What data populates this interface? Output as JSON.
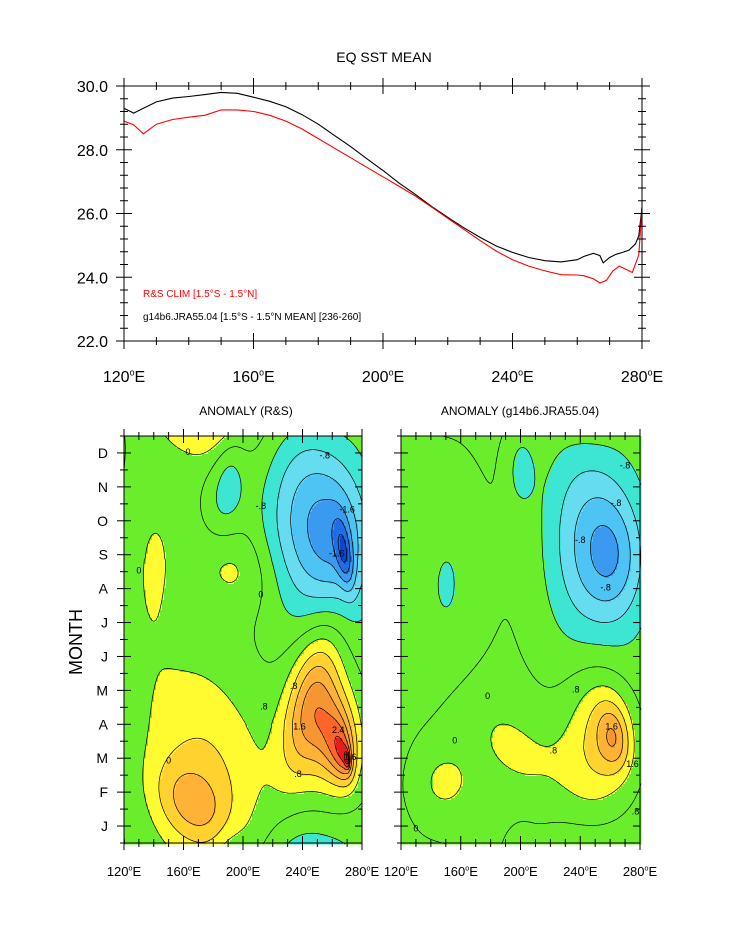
{
  "top_chart": {
    "chart_data": {
      "type": "line",
      "title": "EQ SST MEAN",
      "xlim": [
        120,
        280
      ],
      "ylim": [
        22,
        30
      ],
      "xticks": [
        {
          "v": 120,
          "label": "120°E"
        },
        {
          "v": 160,
          "label": "160°E"
        },
        {
          "v": 200,
          "label": "200°E"
        },
        {
          "v": 240,
          "label": "240°E"
        },
        {
          "v": 280,
          "label": "280°E"
        }
      ],
      "yticks": [
        {
          "v": 30,
          "label": "30.0"
        },
        {
          "v": 28,
          "label": "28.0"
        },
        {
          "v": 26,
          "label": "26.0"
        },
        {
          "v": 24,
          "label": "24.0"
        },
        {
          "v": 22,
          "label": "22.0"
        }
      ],
      "series": [
        {
          "name": "g14b6.JRA55.04 [1.5°S - 1.5°N MEAN] [236-260]",
          "color": "#000000",
          "x": [
            120,
            123,
            126,
            130,
            135,
            140,
            145,
            150,
            155,
            160,
            165,
            170,
            175,
            180,
            185,
            190,
            195,
            200,
            205,
            210,
            215,
            220,
            225,
            230,
            235,
            240,
            245,
            250,
            255,
            260,
            262,
            265,
            267,
            268,
            270,
            272,
            274,
            276,
            278,
            279,
            280
          ],
          "y": [
            29.3,
            29.15,
            29.3,
            29.5,
            29.62,
            29.67,
            29.73,
            29.8,
            29.77,
            29.65,
            29.52,
            29.35,
            29.1,
            28.8,
            28.45,
            28.1,
            27.72,
            27.35,
            26.95,
            26.6,
            26.22,
            25.88,
            25.55,
            25.25,
            24.98,
            24.78,
            24.62,
            24.52,
            24.48,
            24.55,
            24.65,
            24.75,
            24.68,
            24.45,
            24.62,
            24.72,
            24.78,
            24.85,
            25.05,
            25.3,
            26.2
          ]
        },
        {
          "name": "R&S CLIM [1.5°S - 1.5°N]",
          "color": "#ff0000",
          "x": [
            120,
            123,
            126,
            130,
            135,
            140,
            145,
            150,
            155,
            160,
            165,
            170,
            175,
            180,
            185,
            190,
            195,
            200,
            205,
            210,
            215,
            220,
            225,
            230,
            235,
            240,
            245,
            250,
            255,
            260,
            262,
            265,
            267,
            269,
            271,
            273,
            275,
            277,
            279,
            280
          ],
          "y": [
            28.9,
            28.78,
            28.5,
            28.8,
            28.95,
            29.02,
            29.08,
            29.25,
            29.25,
            29.2,
            29.08,
            28.9,
            28.65,
            28.35,
            28.05,
            27.75,
            27.45,
            27.15,
            26.85,
            26.55,
            26.2,
            25.85,
            25.5,
            25.15,
            24.82,
            24.55,
            24.35,
            24.2,
            24.08,
            24.07,
            24.05,
            23.95,
            23.82,
            23.9,
            24.2,
            24.35,
            24.25,
            24.15,
            24.7,
            26.2
          ]
        }
      ],
      "legend": [
        {
          "label": "R&S CLIM [1.5°S - 1.5°N]",
          "color": "#ff0000"
        },
        {
          "label": "g14b6.JRA55.04 [1.5°S - 1.5°N MEAN] [236-260]",
          "color": "#000000"
        }
      ],
      "grid": false
    }
  },
  "contour_charts": {
    "ylabel": "MONTH",
    "month_labels": [
      "J",
      "F",
      "M",
      "A",
      "M",
      "J",
      "J",
      "A",
      "S",
      "O",
      "N",
      "D"
    ],
    "month_values": [
      1,
      2,
      3,
      4,
      5,
      6,
      7,
      8,
      9,
      10,
      11,
      12
    ],
    "x_tick_labels": [
      {
        "v": 120,
        "label": "120°E"
      },
      {
        "v": 160,
        "label": "160°E"
      },
      {
        "v": 200,
        "label": "200°E"
      },
      {
        "v": 240,
        "label": "240°E"
      },
      {
        "v": 280,
        "label": "280°E"
      }
    ],
    "levels": [
      -2.4,
      -2.0,
      -1.6,
      -1.2,
      -0.8,
      -0.4,
      0.4,
      0.8,
      1.2,
      1.6,
      2.0,
      2.4,
      2.8
    ],
    "palette": [
      "#0a46d2",
      "#1e6ee6",
      "#3a9af0",
      "#4ec4f4",
      "#66dcf0",
      "#3ce6d2",
      "#6aee2c",
      "#fffb30",
      "#ffd230",
      "#ffb235",
      "#f59632",
      "#ff6428",
      "#e81c1c",
      "#cc0000"
    ],
    "charts": [
      {
        "type": "heatmap",
        "title": "ANOMALY (R&S)",
        "xlim": [
          120,
          280
        ],
        "ylim": [
          0.5,
          12.5
        ],
        "contour_labels": [
          {
            "text": "-.8",
            "x": 255,
            "y": 11.9
          },
          {
            "text": "-.8",
            "x": 212,
            "y": 10.4
          },
          {
            "text": "-1.6",
            "x": 270,
            "y": 10.3
          },
          {
            "text": "-1.6",
            "x": 263,
            "y": 9.0
          },
          {
            "text": ".8",
            "x": 234,
            "y": 5.1
          },
          {
            "text": ".8",
            "x": 214,
            "y": 4.5
          },
          {
            "text": "1.6",
            "x": 238,
            "y": 3.9
          },
          {
            "text": "2.4",
            "x": 264,
            "y": 3.8
          },
          {
            "text": "1.6",
            "x": 272,
            "y": 3.0
          },
          {
            "text": ".8",
            "x": 237,
            "y": 2.5
          },
          {
            "text": "0",
            "x": 163,
            "y": 12
          },
          {
            "text": "0",
            "x": 130,
            "y": 8.5
          },
          {
            "text": "0",
            "x": 212,
            "y": 7.8
          },
          {
            "text": "0",
            "x": 150,
            "y": 2.9
          }
        ],
        "blobs": [
          {
            "cx": 192,
            "cy": 11.5,
            "rx": 11,
            "ry": 1.3,
            "a": 0.2
          },
          {
            "cx": 185,
            "cy": 10.5,
            "rx": 14,
            "ry": 1.3,
            "a": 0.2
          },
          {
            "cx": 243,
            "cy": 10.0,
            "rx": 30,
            "ry": 3.1,
            "a": -0.33
          },
          {
            "cx": 267,
            "cy": 9.4,
            "rx": 16,
            "ry": 2.7,
            "a": -1.75
          },
          {
            "cx": 268,
            "cy": 9.0,
            "rx": 5,
            "ry": 1.1,
            "a": -2.6
          },
          {
            "cx": 138,
            "cy": 8.6,
            "rx": 18,
            "ry": 2.8,
            "a": -0.2
          },
          {
            "cx": 195,
            "cy": 8.6,
            "rx": 28,
            "ry": 1.2,
            "a": -0.1
          },
          {
            "cx": 178,
            "cy": 2.9,
            "rx": 48,
            "ry": 2.6,
            "a": -0.2
          },
          {
            "cx": 165,
            "cy": 1.6,
            "rx": 26,
            "ry": 1.2,
            "a": -0.15
          },
          {
            "cx": 245,
            "cy": 4.7,
            "rx": 25,
            "ry": 1.6,
            "a": 0.75
          },
          {
            "cx": 250,
            "cy": 3.9,
            "rx": 24,
            "ry": 3.0,
            "a": 1.6
          },
          {
            "cx": 262,
            "cy": 3.8,
            "rx": 13,
            "ry": 2.3,
            "a": 1.4
          },
          {
            "cx": 264,
            "cy": 3.4,
            "rx": 10,
            "ry": 1.7,
            "a": 1.3
          },
          {
            "cx": 266,
            "cy": 3.2,
            "rx": 7,
            "ry": 1.2,
            "a": 1.1
          },
          {
            "cx": 268,
            "cy": 3.0,
            "rx": 4.5,
            "ry": 0.8,
            "a": 0.9
          },
          {
            "cx": 270,
            "cy": 3.0,
            "rx": 2.5,
            "ry": 0.4,
            "a": 0.7
          },
          {
            "cx": 270,
            "cy": 2.95,
            "rx": 1.3,
            "ry": 0.25,
            "a": 0.3
          }
        ]
      },
      {
        "type": "heatmap",
        "title": "ANOMALY (g14b6.JRA55.04)",
        "xlim": [
          120,
          280
        ],
        "ylim": [
          0.5,
          12.5
        ],
        "contour_labels": [
          {
            "text": "-.8",
            "x": 270,
            "y": 11.6
          },
          {
            "text": "-.8",
            "x": 264,
            "y": 10.5
          },
          {
            "text": "-.8",
            "x": 240,
            "y": 9.4
          },
          {
            "text": "-.8",
            "x": 257,
            "y": 8.0
          },
          {
            "text": ".8",
            "x": 237,
            "y": 5.0
          },
          {
            "text": "1.6",
            "x": 261,
            "y": 3.9
          },
          {
            "text": "1.6",
            "x": 275,
            "y": 2.8
          },
          {
            "text": ".8",
            "x": 222,
            "y": 3.2
          },
          {
            "text": ".8",
            "x": 277,
            "y": 1.4
          },
          {
            "text": "0",
            "x": 178,
            "y": 4.8
          },
          {
            "text": "0",
            "x": 156,
            "y": 3.5
          },
          {
            "text": "0",
            "x": 130,
            "y": 0.9
          }
        ],
        "blobs": [
          {
            "cx": 200,
            "cy": 11.5,
            "rx": 10,
            "ry": 1.2,
            "a": 0.2
          },
          {
            "cx": 152,
            "cy": 8.1,
            "rx": 25,
            "ry": 3.4,
            "a": -0.25
          },
          {
            "cx": 245,
            "cy": 9.3,
            "rx": 30,
            "ry": 3.3,
            "a": -0.35
          },
          {
            "cx": 263,
            "cy": 9.0,
            "rx": 14,
            "ry": 2.6,
            "a": -1.65
          },
          {
            "cx": 206,
            "cy": 3.0,
            "rx": 48,
            "ry": 1.6,
            "a": -0.22
          },
          {
            "cx": 148,
            "cy": 2.3,
            "rx": 18,
            "ry": 1.0,
            "a": 0
          },
          {
            "cx": 248,
            "cy": 3.6,
            "rx": 22,
            "ry": 2.8,
            "a": 1.45
          },
          {
            "cx": 261,
            "cy": 3.7,
            "rx": 12,
            "ry": 2.1,
            "a": 1.4
          },
          {
            "cx": 263,
            "cy": 3.6,
            "rx": 7,
            "ry": 1.3,
            "a": 1.3
          }
        ]
      }
    ]
  }
}
